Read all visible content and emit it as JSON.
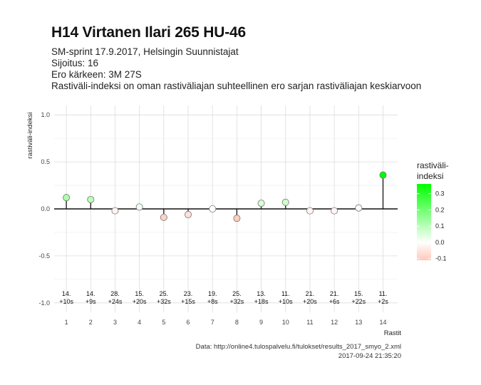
{
  "header": {
    "title": "H14 Virtanen Ilari 265 HU-46",
    "subtitle_lines": [
      "SM-sprint 17.9.2017, Helsingin Suunnistajat",
      "Sijoitus: 16",
      "Ero kärkeen: 3M 27S",
      "Rastiväli-indeksi on oman rastiväliajan suhteellinen ero sarjan rastiväliajan keskiarvoon"
    ]
  },
  "caption": {
    "source": "Data: http://online4.tulospalvelu.fi/tulokset/results_2017_smyo_2.xml",
    "timestamp": "2017-09-24 21:35:20"
  },
  "chart_data": {
    "type": "scatter",
    "xlabel": "Rastit",
    "ylabel": "rastiväli-indeksi",
    "x": [
      1,
      2,
      3,
      4,
      5,
      6,
      7,
      8,
      9,
      10,
      11,
      12,
      13,
      14
    ],
    "values": [
      0.12,
      0.1,
      -0.02,
      0.02,
      -0.09,
      -0.06,
      0.0,
      -0.1,
      0.06,
      0.07,
      -0.02,
      -0.02,
      0.01,
      0.36
    ],
    "rank_labels": [
      "14.",
      "14.",
      "28.",
      "15.",
      "25.",
      "23.",
      "19.",
      "25.",
      "13.",
      "11.",
      "21.",
      "21.",
      "15.",
      "11."
    ],
    "diff_labels": [
      "+10s",
      "+9s",
      "+24s",
      "+20s",
      "+32s",
      "+15s",
      "+8s",
      "+32s",
      "+18s",
      "+10s",
      "+20s",
      "+6s",
      "+22s",
      "+2s"
    ],
    "yticks": [
      1.0,
      0.5,
      0.0,
      -0.5,
      -1.0
    ],
    "ytick_labels": [
      "1.0",
      "0.5",
      "0.0",
      "-0.5",
      "-1.0"
    ],
    "ylim": [
      -1.1,
      1.1
    ],
    "xlim": [
      0.5,
      14.6
    ],
    "grid": true,
    "legend": {
      "title_lines": [
        "rastiväli-",
        "indeksi"
      ],
      "ticks": [
        0.3,
        0.2,
        0.1,
        0.0,
        -0.1
      ],
      "tick_labels": [
        "0.3",
        "0.2",
        "0.1",
        "0.0",
        "-0.1"
      ],
      "range": [
        -0.11,
        0.36
      ],
      "placement": "right",
      "colors": {
        "high": "#00ff00",
        "mid": "#ffffff",
        "low": "#ffc8b9"
      }
    }
  }
}
